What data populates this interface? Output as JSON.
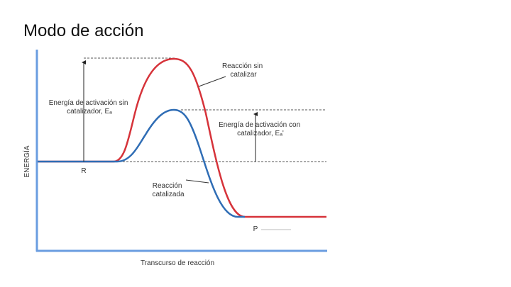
{
  "title": "Modo de acción",
  "diagram": {
    "y_axis_label": "ENERGÍA",
    "x_axis_label": "Transcurso de reacción",
    "uncatalyzed_curve_label": [
      "Reacción sin",
      "catalizar"
    ],
    "catalyzed_curve_label": [
      "Reacción",
      "catalizada"
    ],
    "activation_energy_uncatalyzed": [
      "Energía de activación sin",
      "catalizador, Eₐ"
    ],
    "activation_energy_catalyzed": [
      "Energía de activación con",
      "catalizador, Eₐ'"
    ],
    "reactants": "R",
    "products": "P"
  }
}
